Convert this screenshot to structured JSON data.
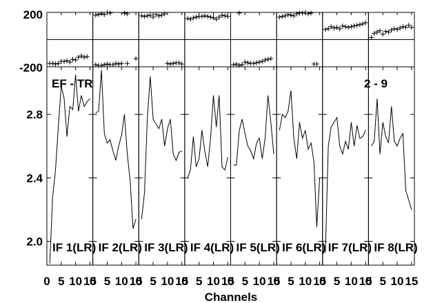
{
  "chart_data": {
    "type": "line",
    "xlabel": "Channels",
    "xlim": [
      0,
      16
    ],
    "x_ticks": [
      0,
      5,
      10,
      15
    ],
    "x_tick_labels": [
      "0",
      "5",
      "10",
      "15"
    ],
    "top_plot": {
      "type": "scatter",
      "ylim": [
        -200,
        200
      ],
      "y_tick_labels": [
        "200",
        "-200"
      ],
      "y_ticks": [
        200,
        -200
      ]
    },
    "bottom_plot": {
      "ylim": [
        1.85,
        3.1
      ],
      "y_ticks": [
        2.0,
        2.4,
        2.8
      ],
      "y_tick_labels": [
        "2.0",
        "2.4",
        "2.8"
      ]
    },
    "annotations": {
      "left": "EF - TR",
      "right": "2 - 9"
    },
    "panels": [
      {
        "label": "IF 1(LR)",
        "phase_x": [
          1,
          2,
          3,
          4,
          5,
          6,
          7,
          8,
          9,
          10,
          11,
          12,
          13,
          14
        ],
        "phase_y": [
          -175,
          -175,
          -180,
          -175,
          -160,
          -160,
          -155,
          -165,
          -145,
          -150,
          -130,
          -120,
          -130,
          -125
        ],
        "amp_x": [
          1,
          2,
          3,
          4,
          5,
          6,
          7,
          8,
          9,
          10,
          11,
          12,
          13,
          14,
          15
        ],
        "amp_y": [
          1.86,
          2.28,
          2.45,
          2.73,
          2.98,
          2.9,
          2.66,
          2.85,
          2.83,
          3.05,
          2.82,
          2.92,
          2.85,
          2.88,
          2.9
        ]
      },
      {
        "label": "IF 2(LR)",
        "phase_x": [
          1,
          2,
          3,
          4,
          5,
          6,
          11,
          12,
          1,
          2,
          3,
          4,
          5,
          6,
          7,
          8,
          9,
          10,
          12,
          15
        ],
        "phase_y": [
          180,
          185,
          190,
          185,
          200,
          195,
          195,
          190,
          -185,
          -190,
          -190,
          -185,
          -180,
          -185,
          -185,
          -175,
          -180,
          -175,
          -175,
          -140
        ],
        "amp_x": [
          1,
          2,
          3,
          4,
          5,
          6,
          7,
          8,
          9,
          10,
          11,
          12,
          13,
          14,
          15
        ],
        "amp_y": [
          2.81,
          2.82,
          3.08,
          2.68,
          2.62,
          2.64,
          2.57,
          2.51,
          2.6,
          2.67,
          2.8,
          2.55,
          2.38,
          2.08,
          2.14
        ]
      },
      {
        "label": "IF 3(LR)",
        "phase_x": [
          1,
          2,
          3,
          4,
          5,
          6,
          7,
          8,
          9,
          10,
          11,
          12,
          13,
          14,
          15
        ],
        "phase_y": [
          175,
          170,
          175,
          180,
          165,
          185,
          175,
          180,
          190,
          -175,
          -180,
          -175,
          -170,
          -170,
          -180
        ],
        "amp_x": [
          1,
          2,
          3,
          4,
          5,
          6,
          7,
          8,
          9,
          10,
          11,
          12,
          13,
          14,
          15
        ],
        "amp_y": [
          2.14,
          2.31,
          2.78,
          3.04,
          2.77,
          2.74,
          2.71,
          2.77,
          2.6,
          2.71,
          2.77,
          2.55,
          2.51,
          2.56,
          2.57
        ]
      },
      {
        "label": "IF 4(LR)",
        "phase_x": [
          1,
          2,
          3,
          4,
          5,
          6,
          7,
          8,
          9,
          10,
          11,
          12,
          13,
          14,
          15
        ],
        "phase_y": [
          155,
          150,
          160,
          165,
          170,
          170,
          175,
          170,
          165,
          160,
          150,
          165,
          180,
          175,
          170
        ],
        "amp_x": [
          1,
          2,
          3,
          4,
          5,
          6,
          7,
          8,
          9,
          10,
          11,
          12,
          13,
          14,
          15
        ],
        "amp_y": [
          2.4,
          2.45,
          2.66,
          2.47,
          2.52,
          2.7,
          2.57,
          2.47,
          2.65,
          2.92,
          2.72,
          2.92,
          2.47,
          2.45,
          2.53
        ]
      },
      {
        "label": "IF 5(LR)",
        "phase_x": [
          3,
          1,
          2,
          3,
          4,
          5,
          6,
          7,
          8,
          9,
          10,
          11,
          12,
          13,
          14
        ],
        "phase_y": [
          195,
          -185,
          -180,
          -190,
          -185,
          -165,
          -170,
          -175,
          -175,
          -170,
          -165,
          -160,
          -150,
          -145,
          -140
        ],
        "amp_x": [
          1,
          2,
          3,
          4,
          5,
          6,
          7,
          8,
          9,
          10,
          11,
          12,
          13,
          14,
          15
        ],
        "amp_y": [
          2.48,
          2.48,
          2.7,
          2.77,
          2.68,
          2.6,
          2.57,
          2.52,
          2.62,
          2.65,
          2.52,
          2.65,
          2.92,
          2.75,
          2.55
        ]
      },
      {
        "label": "IF 6(LR)",
        "phase_x": [
          1,
          2,
          3,
          4,
          5,
          6,
          7,
          8,
          9,
          10,
          11,
          12,
          13,
          14
        ],
        "phase_y": [
          165,
          170,
          175,
          185,
          180,
          175,
          190,
          195,
          195,
          200,
          190,
          195,
          -180,
          -180
        ],
        "amp_x": [
          1,
          2,
          3,
          4,
          5,
          6,
          7,
          8,
          9,
          10,
          11,
          12,
          13,
          14,
          15
        ],
        "amp_y": [
          2.7,
          2.8,
          2.78,
          2.82,
          2.95,
          2.65,
          2.52,
          2.75,
          2.65,
          2.7,
          2.58,
          2.62,
          2.5,
          2.09,
          2.4
        ]
      },
      {
        "label": "IF 7(LR)",
        "phase_x": [
          1,
          2,
          3,
          4,
          5,
          6,
          7,
          8,
          9,
          10,
          11,
          12,
          13,
          14,
          15
        ],
        "phase_y": [
          75,
          80,
          95,
          85,
          90,
          80,
          100,
          95,
          90,
          95,
          100,
          105,
          110,
          115,
          125
        ],
        "amp_x": [
          1,
          2,
          3,
          4,
          5,
          6,
          7,
          8,
          9,
          10,
          11,
          12,
          13,
          14,
          15
        ],
        "amp_y": [
          1.93,
          2.6,
          2.72,
          2.75,
          2.78,
          2.6,
          2.55,
          2.63,
          2.58,
          2.75,
          2.6,
          2.73,
          2.65,
          2.66,
          2.7
        ]
      },
      {
        "label": "IF 8(LR)",
        "phase_x": [
          1,
          2,
          3,
          4,
          5,
          6,
          7,
          8,
          9,
          10,
          11,
          12,
          13,
          14,
          15
        ],
        "phase_y": [
          15,
          45,
          55,
          65,
          40,
          60,
          55,
          70,
          80,
          75,
          85,
          95,
          90,
          105,
          90
        ],
        "amp_x": [
          1,
          2,
          3,
          4,
          5,
          6,
          7,
          8,
          9,
          10,
          11,
          12,
          13,
          14,
          15
        ],
        "amp_y": [
          2.6,
          2.63,
          2.9,
          2.55,
          2.75,
          2.66,
          2.62,
          2.85,
          2.63,
          2.6,
          2.65,
          2.68,
          2.32,
          2.26,
          2.2
        ]
      }
    ]
  }
}
